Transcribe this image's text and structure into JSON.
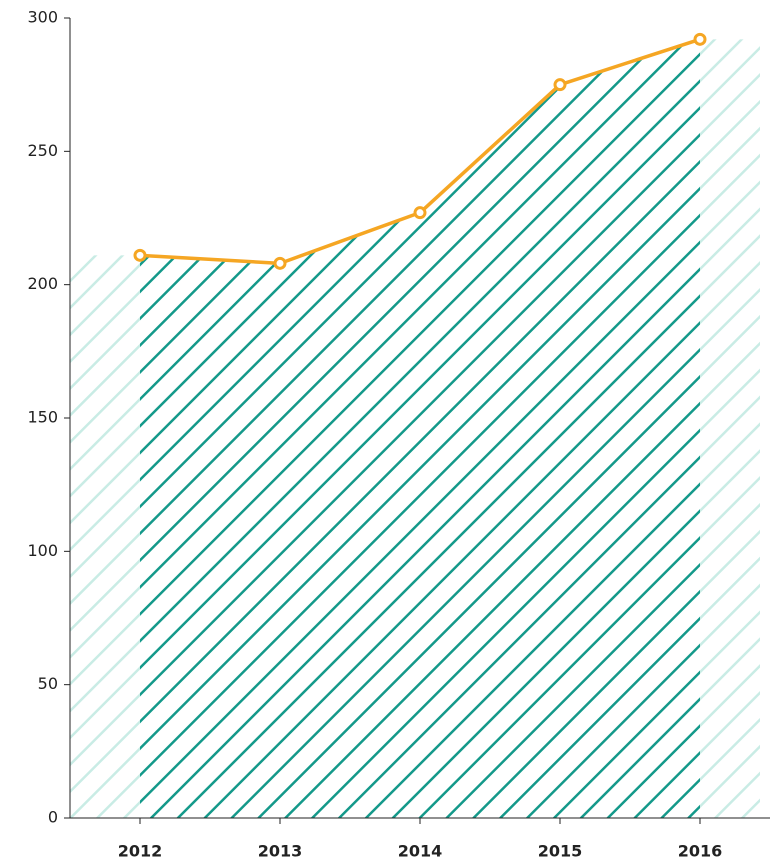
{
  "chart_data": {
    "type": "line",
    "categories": [
      "2012",
      "2013",
      "2014",
      "2015",
      "2016"
    ],
    "values": [
      211,
      208,
      227,
      275,
      292
    ],
    "color": "#f5a623",
    "fill_color": "#14998a",
    "extension_color": "#c9ece5",
    "ylim": [
      0,
      300
    ],
    "yticks": [
      0,
      50,
      100,
      150,
      200,
      250,
      300
    ],
    "grid": false
  }
}
